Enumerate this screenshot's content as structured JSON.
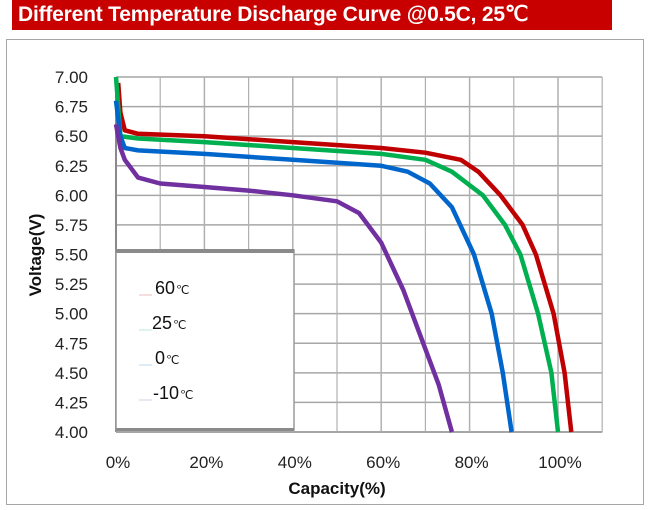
{
  "header": {
    "title": "Different Temperature Discharge Curve @0.5C, 25℃",
    "background_color": "#c80000"
  },
  "chart_data": {
    "type": "line",
    "title": "Different Temperature Discharge Curve @0.5C, 25℃",
    "xlabel": "Capacity(%)",
    "ylabel": "Voltage(V)",
    "xlim": [
      0,
      110
    ],
    "ylim": [
      4.0,
      7.0
    ],
    "x_ticks": [
      0,
      20,
      40,
      60,
      80,
      100
    ],
    "x_tick_labels": [
      "0%",
      "20%",
      "40%",
      "60%",
      "80%",
      "100%"
    ],
    "y_ticks": [
      7.0,
      6.75,
      6.5,
      6.25,
      6.0,
      5.75,
      5.5,
      5.25,
      5.0,
      4.75,
      4.5,
      4.25,
      4.0
    ],
    "y_tick_labels": [
      "7.00",
      "6.75",
      "6.50",
      "6.25",
      "6.00",
      "5.75",
      "5.50",
      "5.25",
      "5.00",
      "4.75",
      "4.50",
      "4.25",
      "4.00"
    ],
    "grid": true,
    "x_grid_step": 10,
    "legend_position": "lower-left",
    "series": [
      {
        "name": "60℃",
        "color": "#c00000",
        "x": [
          0.5,
          1,
          2,
          5,
          20,
          40,
          60,
          70,
          78,
          82,
          87,
          92,
          95,
          99,
          101.5,
          103
        ],
        "y": [
          6.95,
          6.7,
          6.55,
          6.52,
          6.5,
          6.45,
          6.4,
          6.36,
          6.3,
          6.2,
          6.0,
          5.75,
          5.5,
          5.0,
          4.5,
          4.0
        ]
      },
      {
        "name": "25℃",
        "color": "#00b050",
        "x": [
          0,
          1,
          5,
          20,
          40,
          60,
          70,
          76,
          83,
          88,
          91.5,
          95.5,
          98.5,
          100
        ],
        "y": [
          7.0,
          6.5,
          6.48,
          6.45,
          6.4,
          6.35,
          6.3,
          6.2,
          6.0,
          5.75,
          5.5,
          5.0,
          4.5,
          4.0
        ]
      },
      {
        "name": "0℃",
        "color": "#0066cc",
        "x": [
          0,
          1,
          2,
          5,
          20,
          40,
          60,
          66,
          71,
          76,
          81,
          85,
          87.5,
          89.5
        ],
        "y": [
          6.8,
          6.5,
          6.4,
          6.38,
          6.35,
          6.3,
          6.25,
          6.2,
          6.1,
          5.9,
          5.5,
          5.0,
          4.5,
          4.0
        ]
      },
      {
        "name": "-10℃",
        "color": "#7030a0",
        "x": [
          0,
          1,
          2,
          5,
          10,
          20,
          30,
          40,
          50,
          55,
          60,
          65,
          69,
          73,
          76
        ],
        "y": [
          6.6,
          6.4,
          6.3,
          6.15,
          6.1,
          6.07,
          6.04,
          6.0,
          5.95,
          5.85,
          5.6,
          5.2,
          4.8,
          4.4,
          4.0
        ]
      }
    ]
  }
}
